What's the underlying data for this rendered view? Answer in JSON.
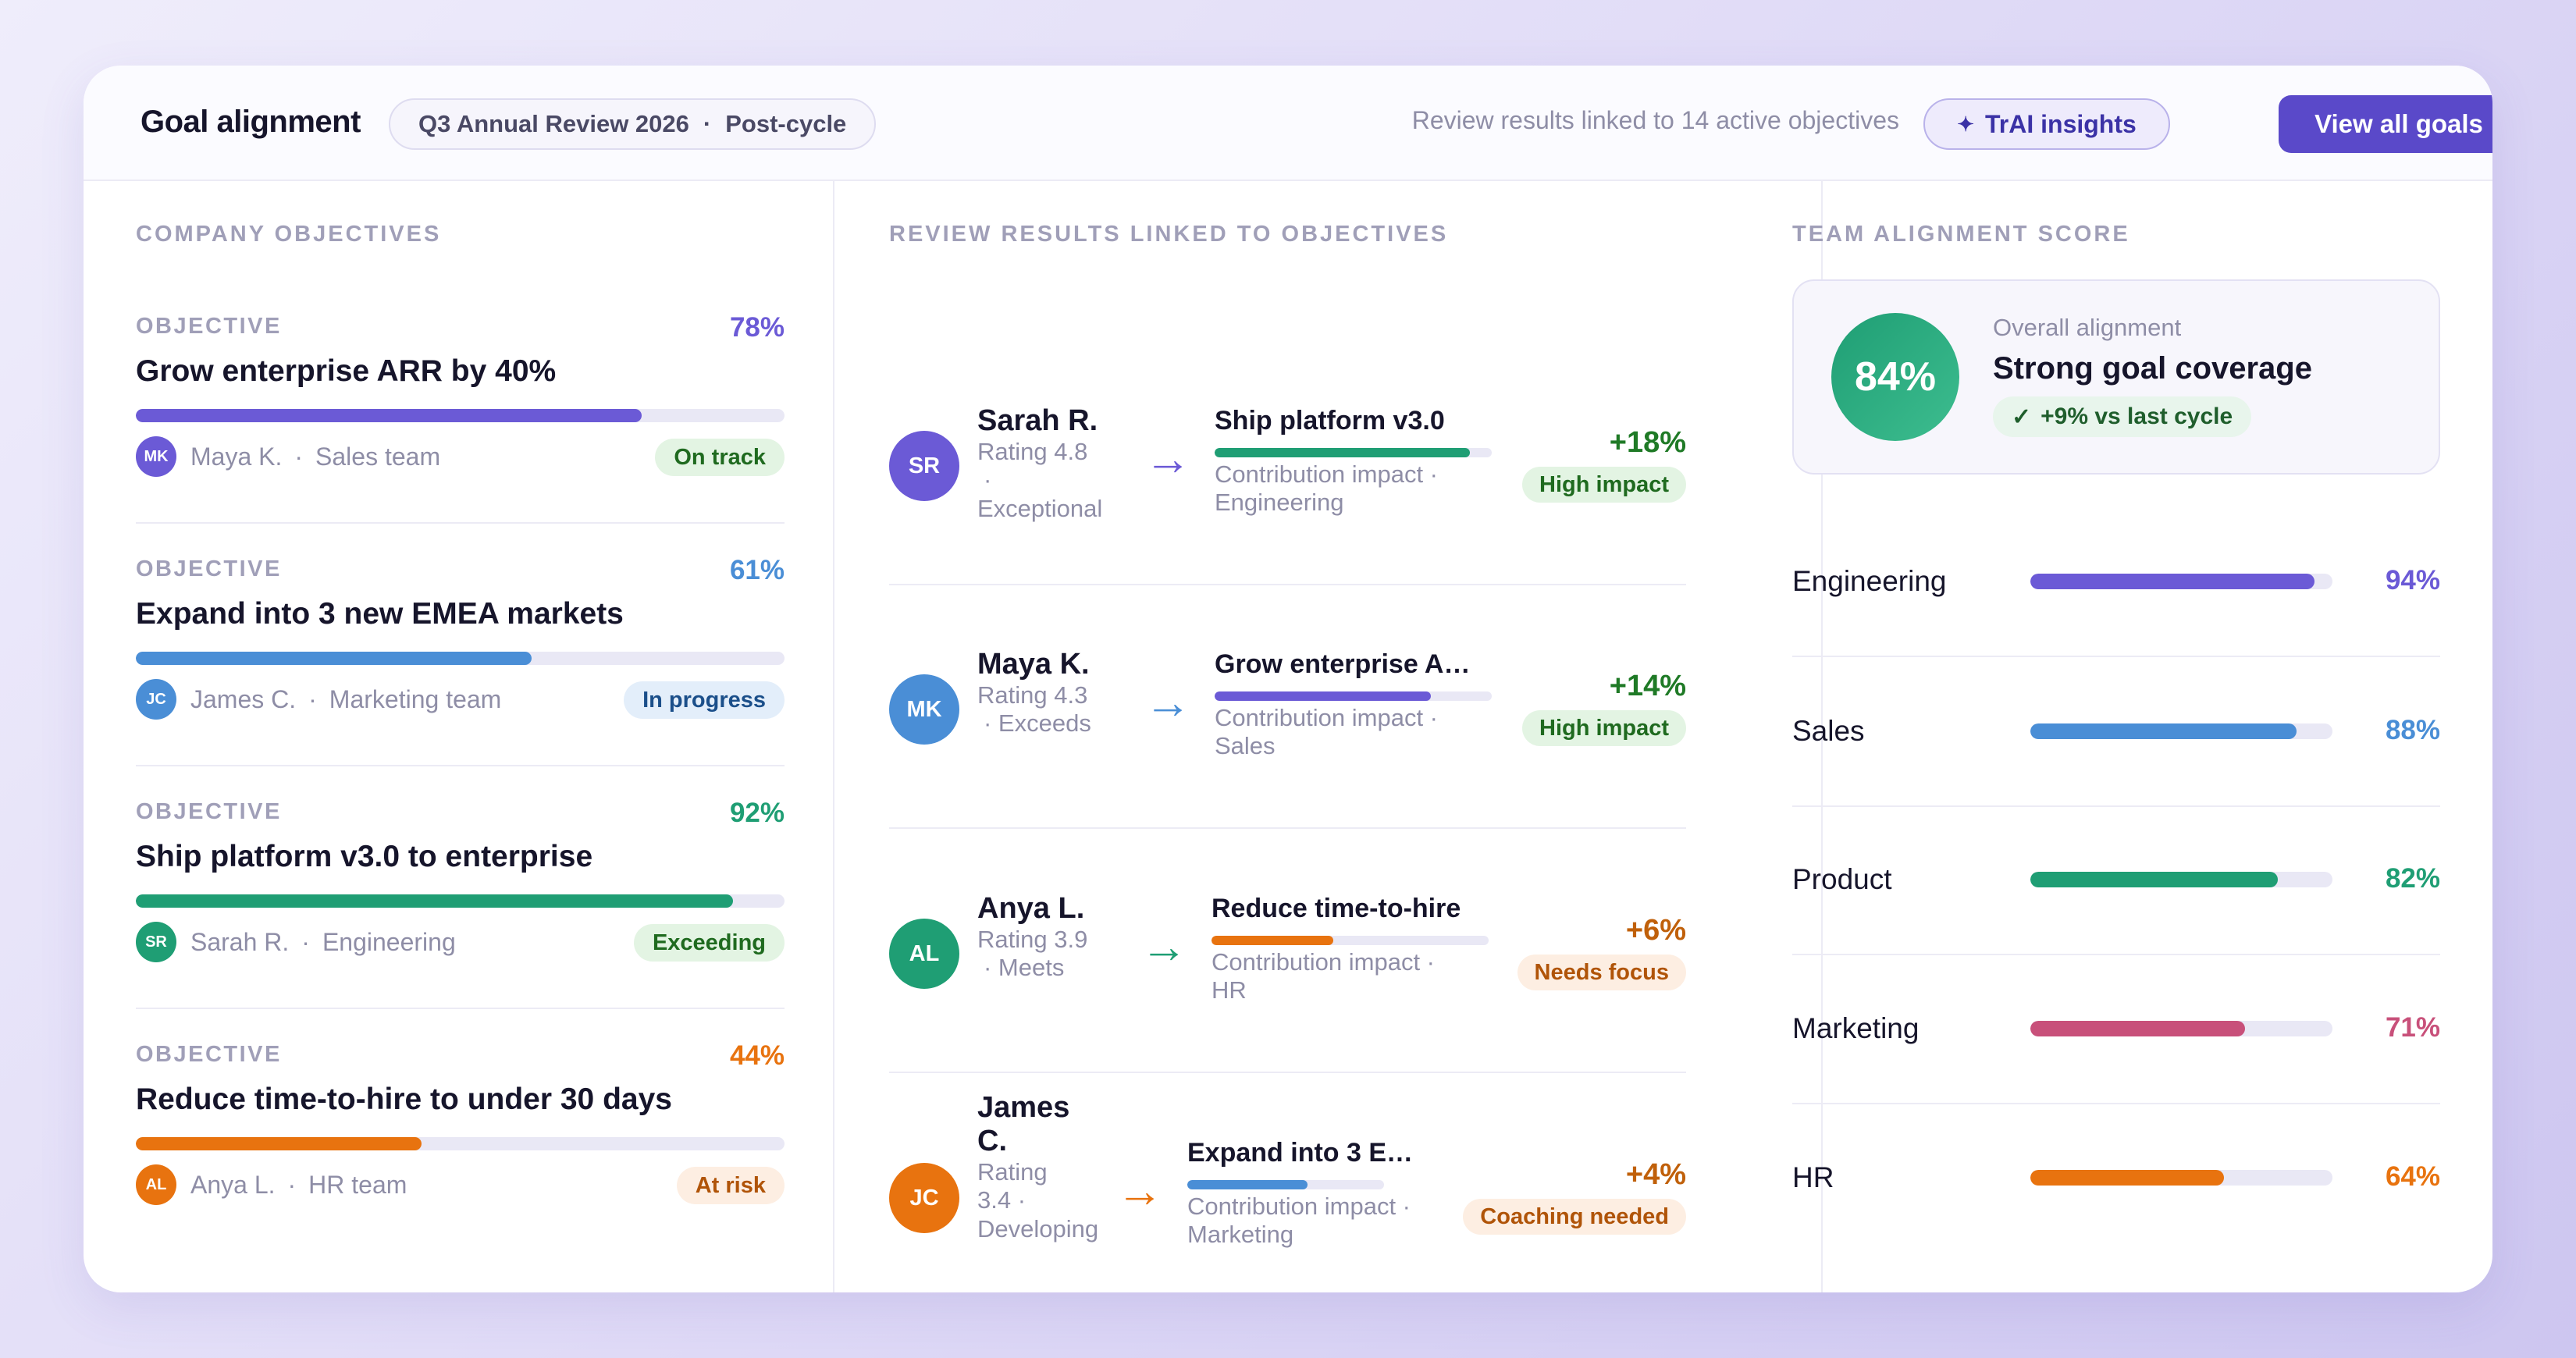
{
  "header": {
    "title": "Goal alignment",
    "cycle": "Q3 Annual Review 2026",
    "cycle_sep": "·",
    "phase": "Post-cycle",
    "note": "Review results linked to 14 active objectives",
    "insights_label": "TrAI insights",
    "insights_icon": "sparkle-icon",
    "view_all_label": "View all goals"
  },
  "sections": {
    "objectives": "COMPANY OBJECTIVES",
    "reviews": "REVIEW RESULTS LINKED TO OBJECTIVES",
    "teams": "TEAM ALIGNMENT SCORE"
  },
  "objectives": [
    {
      "label": "OBJECTIVE",
      "pct": "78%",
      "progress": 0.78,
      "title": "Grow enterprise ARR by 40%",
      "initials": "MK",
      "owner": "Maya K.",
      "sep": "·",
      "team": "Sales team",
      "status": "On track",
      "color": "#6b5ad6",
      "status_bg": "#e3f4e3",
      "status_fg": "#1f6a1f"
    },
    {
      "label": "OBJECTIVE",
      "pct": "61%",
      "progress": 0.61,
      "title": "Expand into 3 new EMEA markets",
      "initials": "JC",
      "owner": "James C.",
      "sep": "·",
      "team": "Marketing team",
      "status": "In progress",
      "color": "#4a8ed6",
      "status_bg": "#e3eefa",
      "status_fg": "#1b4f8a"
    },
    {
      "label": "OBJECTIVE",
      "pct": "92%",
      "progress": 0.92,
      "title": "Ship platform v3.0 to enterprise",
      "initials": "SR",
      "owner": "Sarah R.",
      "sep": "·",
      "team": "Engineering",
      "status": "Exceeding",
      "color": "#1f9e74",
      "status_bg": "#e3f4e3",
      "status_fg": "#1f6a1f"
    },
    {
      "label": "OBJECTIVE",
      "pct": "44%",
      "progress": 0.44,
      "title": "Reduce time-to-hire to under 30 days",
      "initials": "AL",
      "owner": "Anya L.",
      "sep": "·",
      "team": "HR team",
      "status": "At risk",
      "color": "#e8730f",
      "status_bg": "#fdeee2",
      "status_fg": "#b05408"
    }
  ],
  "reviews": [
    {
      "initials": "SR",
      "name_lines": [
        "Sarah R."
      ],
      "rating_lines": [
        "Rating 4.8",
        "·",
        "Exceptional"
      ],
      "goal": "Ship platform v3.0",
      "progress": 0.92,
      "impact_lines": [
        "Contribution impact ·",
        "Engineering"
      ],
      "delta": "+18%",
      "pill": "High impact",
      "color": "#6b5ad6",
      "arrow_color": "#6b5ad6",
      "bar_color": "#1f9e74",
      "delta_color": "#1f7a26",
      "pill_bg": "#e3f4e3",
      "pill_fg": "#1f6a1f"
    },
    {
      "initials": "MK",
      "name_lines": [
        "Maya K."
      ],
      "rating_lines": [
        "Rating 4.3",
        "· Exceeds"
      ],
      "goal": "Grow enterprise A…",
      "progress": 0.78,
      "impact_lines": [
        "Contribution impact ·",
        "Sales"
      ],
      "delta": "+14%",
      "pill": "High impact",
      "color": "#4a8ed6",
      "arrow_color": "#4a8ed6",
      "bar_color": "#6b5ad6",
      "delta_color": "#1f7a26",
      "pill_bg": "#e3f4e3",
      "pill_fg": "#1f6a1f"
    },
    {
      "initials": "AL",
      "name_lines": [
        "Anya L."
      ],
      "rating_lines": [
        "Rating 3.9",
        "· Meets"
      ],
      "goal": "Reduce time-to-hire",
      "progress": 0.44,
      "impact_lines": [
        "Contribution impact ·",
        "HR"
      ],
      "delta": "+6%",
      "pill": "Needs focus",
      "color": "#1f9e74",
      "arrow_color": "#1f9e74",
      "bar_color": "#e8730f",
      "delta_color": "#c0600a",
      "pill_bg": "#fdeee2",
      "pill_fg": "#b05408"
    },
    {
      "initials": "JC",
      "name_lines": [
        "James",
        "C."
      ],
      "rating_lines": [
        "Rating",
        "3.4 ·",
        "Developing"
      ],
      "goal": "Expand into 3 E…",
      "progress": 0.61,
      "impact_lines": [
        "Contribution impact ·",
        "Marketing"
      ],
      "delta": "+4%",
      "pill": "Coaching needed",
      "color": "#e8730f",
      "arrow_color": "#e8730f",
      "bar_color": "#4a8ed6",
      "delta_color": "#c0600a",
      "pill_bg": "#fdeee2",
      "pill_fg": "#b05408"
    }
  ],
  "alignment": {
    "score": "84%",
    "kicker": "Overall alignment",
    "headline": "Strong goal coverage",
    "delta_icon": "check-icon",
    "delta": "+9% vs last cycle"
  },
  "teams": [
    {
      "name": "Engineering",
      "pct": "94%",
      "value": 0.94,
      "color": "#6b5ad6"
    },
    {
      "name": "Sales",
      "pct": "88%",
      "value": 0.88,
      "color": "#4a8ed6"
    },
    {
      "name": "Product",
      "pct": "82%",
      "value": 0.82,
      "color": "#1f9e74"
    },
    {
      "name": "Marketing",
      "pct": "71%",
      "value": 0.71,
      "color": "#c8507a"
    },
    {
      "name": "HR",
      "pct": "64%",
      "value": 0.64,
      "color": "#e8730f"
    }
  ]
}
